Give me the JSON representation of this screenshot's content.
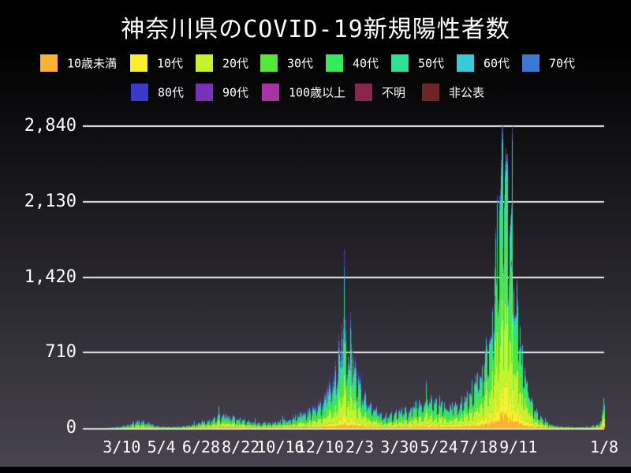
{
  "title": "神奈川県のCOVID-19新規陽性者数",
  "legend": {
    "items": [
      {
        "label": "10歳未満",
        "color": "#FBB232"
      },
      {
        "label": "10代",
        "color": "#F9EE30"
      },
      {
        "label": "20代",
        "color": "#C4F22E"
      },
      {
        "label": "30代",
        "color": "#55E83A"
      },
      {
        "label": "40代",
        "color": "#36EA5D"
      },
      {
        "label": "50代",
        "color": "#2FE195"
      },
      {
        "label": "60代",
        "color": "#3AC9D9"
      },
      {
        "label": "70代",
        "color": "#3A79D5"
      },
      {
        "label": "80代",
        "color": "#393BC8"
      },
      {
        "label": "90代",
        "color": "#7831B9"
      },
      {
        "label": "100歳以上",
        "color": "#A833A5"
      },
      {
        "label": "不明",
        "color": "#88264E"
      },
      {
        "label": "非公表",
        "color": "#6F2526"
      }
    ]
  },
  "colors": {
    "background_top": "#000000",
    "background_bottom": "#474450",
    "grid": "#EDEDED",
    "axis_line": "#D8D8D8",
    "text": "#FFFFFF"
  },
  "chart_data": {
    "type": "bar",
    "subtype": "stacked-daily-bars",
    "title": "神奈川県のCOVID-19新規陽性者数",
    "grid": true,
    "legend_position": "top",
    "ylim": [
      0,
      2840
    ],
    "y_ticks": [
      {
        "label": "0",
        "value": 0
      },
      {
        "label": "710",
        "value": 710
      },
      {
        "label": "1,420",
        "value": 1420
      },
      {
        "label": "2,130",
        "value": 2130
      },
      {
        "label": "2,840",
        "value": 2840
      }
    ],
    "x_start_date": "2020-01-16",
    "x_end_date": "2022-01-08",
    "x_total_days": 723,
    "x_ticks": [
      {
        "label": "3/10",
        "day": 54
      },
      {
        "label": "5/4",
        "day": 109
      },
      {
        "label": "6/28",
        "day": 164
      },
      {
        "label": "8/22",
        "day": 219
      },
      {
        "label": "10/16",
        "day": 274
      },
      {
        "label": "12/10",
        "day": 329
      },
      {
        "label": "2/3",
        "day": 384
      },
      {
        "label": "3/30",
        "day": 439
      },
      {
        "label": "5/24",
        "day": 494
      },
      {
        "label": "7/18",
        "day": 549
      },
      {
        "label": "9/11",
        "day": 604
      },
      {
        "label": "1/8",
        "day": 723
      }
    ],
    "series_order_bottom_to_top": [
      "10歳未満",
      "10代",
      "20代",
      "30代",
      "40代",
      "50代",
      "60代",
      "70代",
      "80代",
      "90代",
      "100歳以上",
      "不明",
      "非公表"
    ],
    "total_daily_anchors": [
      [
        0,
        0
      ],
      [
        15,
        1
      ],
      [
        30,
        2
      ],
      [
        45,
        8
      ],
      [
        60,
        25
      ],
      [
        70,
        50
      ],
      [
        82,
        72
      ],
      [
        90,
        50
      ],
      [
        100,
        25
      ],
      [
        112,
        14
      ],
      [
        125,
        12
      ],
      [
        140,
        18
      ],
      [
        155,
        32
      ],
      [
        170,
        62
      ],
      [
        183,
        95
      ],
      [
        197,
        118
      ],
      [
        210,
        92
      ],
      [
        222,
        72
      ],
      [
        235,
        58
      ],
      [
        250,
        46
      ],
      [
        265,
        52
      ],
      [
        280,
        70
      ],
      [
        295,
        105
      ],
      [
        310,
        150
      ],
      [
        322,
        200
      ],
      [
        334,
        280
      ],
      [
        344,
        380
      ],
      [
        352,
        560
      ],
      [
        358,
        720
      ],
      [
        362,
        810
      ],
      [
        367,
        760
      ],
      [
        373,
        620
      ],
      [
        380,
        470
      ],
      [
        388,
        330
      ],
      [
        396,
        230
      ],
      [
        404,
        170
      ],
      [
        412,
        135
      ],
      [
        420,
        115
      ],
      [
        428,
        118
      ],
      [
        436,
        132
      ],
      [
        444,
        150
      ],
      [
        452,
        170
      ],
      [
        460,
        200
      ],
      [
        468,
        230
      ],
      [
        476,
        255
      ],
      [
        483,
        270
      ],
      [
        490,
        245
      ],
      [
        498,
        215
      ],
      [
        506,
        185
      ],
      [
        514,
        175
      ],
      [
        522,
        195
      ],
      [
        530,
        240
      ],
      [
        538,
        310
      ],
      [
        546,
        390
      ],
      [
        553,
        480
      ],
      [
        560,
        640
      ],
      [
        566,
        900
      ],
      [
        572,
        1350
      ],
      [
        577,
        1800
      ],
      [
        581,
        2200
      ],
      [
        584,
        2380
      ],
      [
        587,
        2300
      ],
      [
        591,
        2050
      ],
      [
        595,
        1700
      ],
      [
        600,
        1250
      ],
      [
        605,
        880
      ],
      [
        610,
        600
      ],
      [
        615,
        420
      ],
      [
        620,
        280
      ],
      [
        626,
        180
      ],
      [
        632,
        110
      ],
      [
        639,
        65
      ],
      [
        646,
        38
      ],
      [
        654,
        22
      ],
      [
        662,
        14
      ],
      [
        672,
        10
      ],
      [
        682,
        8
      ],
      [
        692,
        9
      ],
      [
        702,
        11
      ],
      [
        710,
        16
      ],
      [
        716,
        35
      ],
      [
        719,
        80
      ],
      [
        721,
        160
      ],
      [
        722,
        240
      ],
      [
        723,
        340
      ]
    ],
    "exact_daily_points": [
      [
        359,
        985
      ],
      [
        582,
        2840
      ]
    ],
    "age_share_keyframes": {
      "days": [
        0,
        200,
        360,
        480,
        585,
        723
      ],
      "shares": {
        "10歳未満": [
          0.02,
          0.03,
          0.03,
          0.045,
          0.05,
          0.06
        ],
        "10代": [
          0.02,
          0.05,
          0.06,
          0.085,
          0.1,
          0.13
        ],
        "20代": [
          0.16,
          0.3,
          0.23,
          0.28,
          0.26,
          0.25
        ],
        "30代": [
          0.13,
          0.18,
          0.15,
          0.18,
          0.19,
          0.18
        ],
        "40代": [
          0.15,
          0.15,
          0.14,
          0.16,
          0.17,
          0.15
        ],
        "50代": [
          0.14,
          0.11,
          0.13,
          0.13,
          0.13,
          0.11
        ],
        "60代": [
          0.1,
          0.07,
          0.09,
          0.06,
          0.05,
          0.06
        ],
        "70代": [
          0.11,
          0.05,
          0.08,
          0.035,
          0.025,
          0.03
        ],
        "80代": [
          0.09,
          0.03,
          0.055,
          0.015,
          0.012,
          0.015
        ],
        "90代": [
          0.05,
          0.02,
          0.03,
          0.007,
          0.005,
          0.006
        ],
        "100歳以上": [
          0.01,
          0.005,
          0.005,
          0.002,
          0.002,
          0.002
        ],
        "不明": [
          0.01,
          0.002,
          0.002,
          0.001,
          0.001,
          0.001
        ],
        "非公表": [
          0.01,
          0.003,
          0.003,
          0.001,
          0.001,
          0.001
        ]
      }
    },
    "weekday_factors": [
      1.12,
      1.18,
      0.62,
      0.8,
      1.0,
      1.08,
      1.14
    ],
    "noise_amplitude": 0.22,
    "spike_chance": 0.035,
    "spike_factor": 1.55
  }
}
